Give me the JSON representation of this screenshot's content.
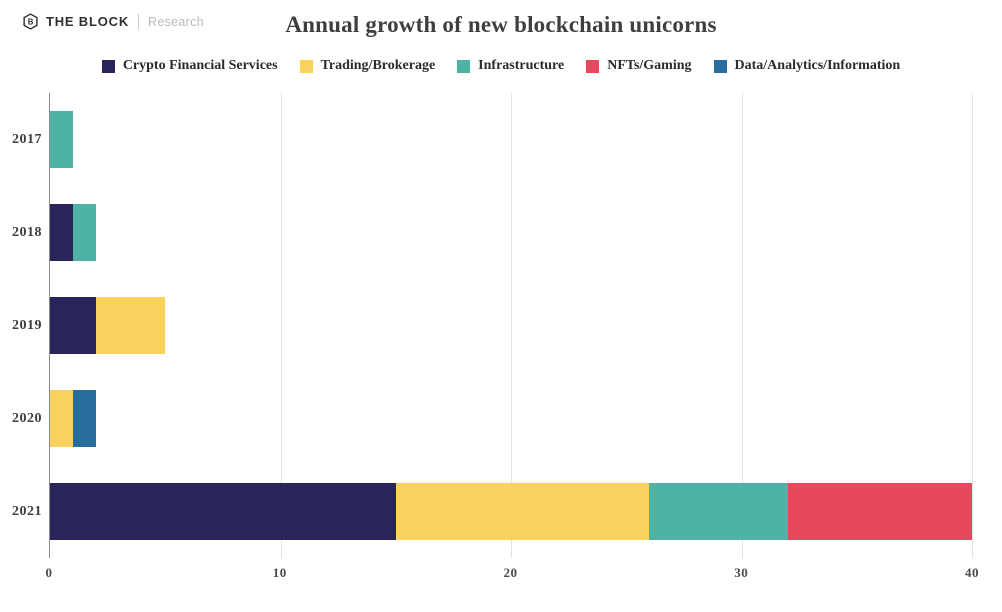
{
  "header": {
    "logo": {
      "brand": "THE BLOCK",
      "sub": "Research",
      "icon": "the-block-hexagon-logo"
    },
    "title": "Annual growth of new blockchain unicorns"
  },
  "colors": {
    "crypto_financial_services": "#29245a",
    "trading_brokerage": "#f9d15d",
    "infrastructure": "#4eb3a5",
    "nfts_gaming": "#e8485e",
    "data_analytics_information": "#2b6c9e",
    "axis_line": "#8a8a8a",
    "gridline": "#e2e2e2",
    "title_text": "#3f3f3f"
  },
  "chart_data": {
    "type": "bar",
    "orientation": "horizontal",
    "stacked": true,
    "title": "Annual growth of new blockchain unicorns",
    "categories": [
      "2017",
      "2018",
      "2019",
      "2020",
      "2021"
    ],
    "series": [
      {
        "name": "Crypto Financial Services",
        "color": "#29245a",
        "values": [
          0,
          1,
          2,
          0,
          15
        ]
      },
      {
        "name": "Trading/Brokerage",
        "color": "#f9d15d",
        "values": [
          0,
          0,
          3,
          1,
          11
        ]
      },
      {
        "name": "Infrastructure",
        "color": "#4eb3a5",
        "values": [
          1,
          1,
          0,
          0,
          6
        ]
      },
      {
        "name": "NFTs/Gaming",
        "color": "#e8485e",
        "values": [
          0,
          0,
          0,
          0,
          8
        ]
      },
      {
        "name": "Data/Analytics/Information",
        "color": "#2b6c9e",
        "values": [
          0,
          0,
          0,
          1,
          0
        ]
      }
    ],
    "totals_by_category": [
      1,
      2,
      5,
      2,
      40
    ],
    "xlabel": "",
    "ylabel": "",
    "xlim": [
      0,
      40
    ],
    "x_ticks": [
      0,
      10,
      20,
      30,
      40
    ],
    "grid": "vertical",
    "legend_position": "top"
  }
}
